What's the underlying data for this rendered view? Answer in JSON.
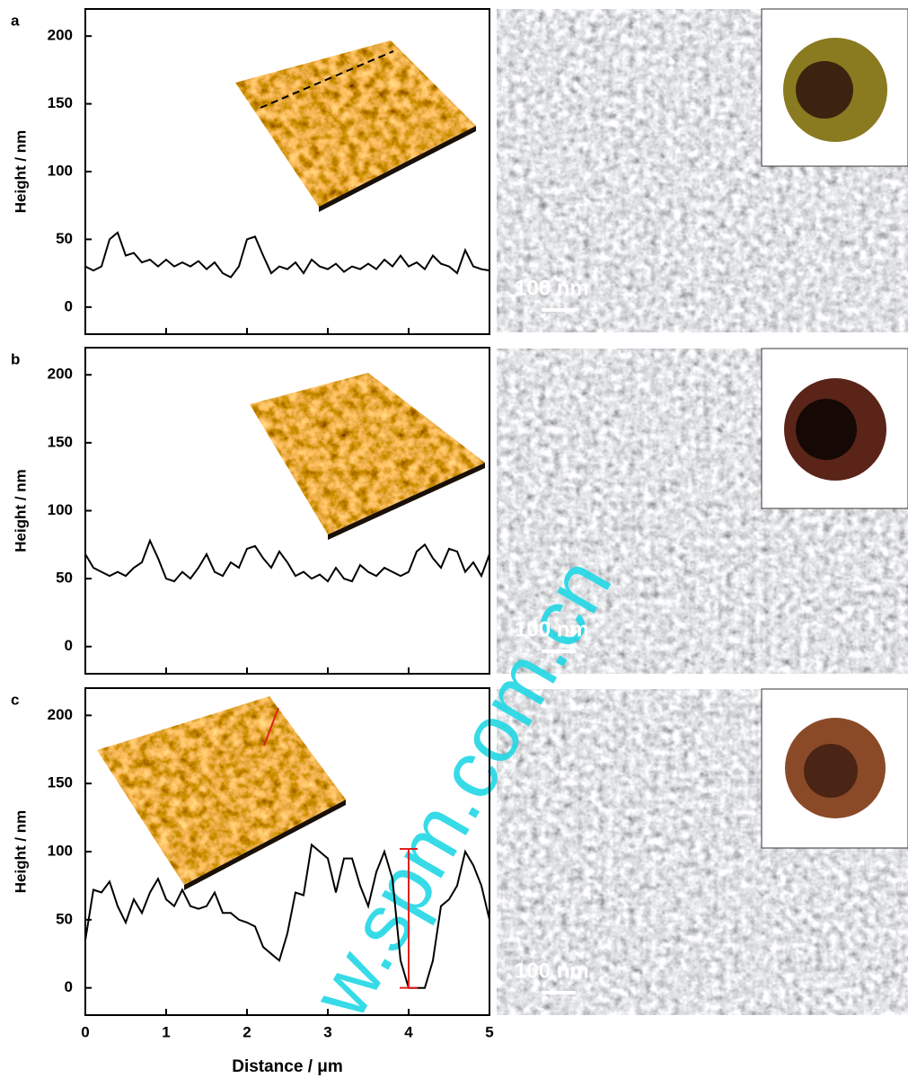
{
  "chart_data": [
    {
      "type": "line",
      "panel_label": "a",
      "ylabel": "Height / nm",
      "scale_label": "100 nm",
      "x": [
        0,
        0.1,
        0.2,
        0.3,
        0.4,
        0.5,
        0.6,
        0.7,
        0.8,
        0.9,
        1,
        1.1,
        1.2,
        1.3,
        1.4,
        1.5,
        1.6,
        1.7,
        1.8,
        1.9,
        2,
        2.1,
        2.2,
        2.3,
        2.4,
        2.5,
        2.6,
        2.7,
        2.8,
        2.9,
        3,
        3.1,
        3.2,
        3.3,
        3.4,
        3.5,
        3.6,
        3.7,
        3.8,
        3.9,
        4,
        4.1,
        4.2,
        4.3,
        4.4,
        4.5,
        4.6,
        4.7,
        4.8,
        4.9,
        5
      ],
      "values": [
        30,
        27,
        30,
        50,
        55,
        38,
        40,
        33,
        35,
        30,
        35,
        30,
        33,
        30,
        34,
        28,
        33,
        25,
        22,
        30,
        50,
        52,
        38,
        25,
        30,
        28,
        33,
        25,
        35,
        30,
        28,
        32,
        26,
        30,
        28,
        32,
        28,
        35,
        30,
        38,
        30,
        33,
        28,
        38,
        32,
        30,
        25,
        42,
        30,
        28,
        27
      ],
      "color": "#000000",
      "xlim": [
        0,
        5
      ],
      "ylim": [
        -20,
        220
      ],
      "xticks": [
        0,
        1,
        2,
        3,
        4,
        5
      ],
      "yticks": [
        0,
        50,
        100,
        150,
        200
      ],
      "xticklabels": false
    },
    {
      "type": "line",
      "panel_label": "b",
      "ylabel": "Height / nm",
      "scale_label": "100 nm",
      "x": [
        0,
        0.1,
        0.2,
        0.3,
        0.4,
        0.5,
        0.6,
        0.7,
        0.8,
        0.9,
        1,
        1.1,
        1.2,
        1.3,
        1.4,
        1.5,
        1.6,
        1.7,
        1.8,
        1.9,
        2,
        2.1,
        2.2,
        2.3,
        2.4,
        2.5,
        2.6,
        2.7,
        2.8,
        2.9,
        3,
        3.1,
        3.2,
        3.3,
        3.4,
        3.5,
        3.6,
        3.7,
        3.8,
        3.9,
        4,
        4.1,
        4.2,
        4.3,
        4.4,
        4.5,
        4.6,
        4.7,
        4.8,
        4.9,
        5
      ],
      "values": [
        68,
        58,
        55,
        52,
        55,
        52,
        58,
        62,
        78,
        65,
        50,
        48,
        55,
        50,
        58,
        68,
        55,
        52,
        62,
        58,
        72,
        74,
        65,
        58,
        70,
        62,
        52,
        55,
        50,
        53,
        48,
        58,
        50,
        48,
        60,
        55,
        52,
        58,
        55,
        52,
        55,
        70,
        75,
        65,
        58,
        72,
        70,
        55,
        62,
        52,
        68
      ],
      "color": "#000000",
      "xlim": [
        0,
        5
      ],
      "ylim": [
        -20,
        220
      ],
      "xticks": [
        0,
        1,
        2,
        3,
        4,
        5
      ],
      "yticks": [
        0,
        50,
        100,
        150,
        200
      ],
      "xticklabels": false
    },
    {
      "type": "line",
      "panel_label": "c",
      "ylabel": "Height / nm",
      "xlabel": "Distance / μm",
      "scale_label": "100 nm",
      "x": [
        0,
        0.1,
        0.2,
        0.3,
        0.4,
        0.5,
        0.6,
        0.7,
        0.8,
        0.9,
        1,
        1.1,
        1.2,
        1.3,
        1.4,
        1.5,
        1.6,
        1.7,
        1.8,
        1.9,
        2,
        2.1,
        2.2,
        2.3,
        2.4,
        2.5,
        2.6,
        2.7,
        2.8,
        2.9,
        3,
        3.1,
        3.2,
        3.3,
        3.4,
        3.5,
        3.6,
        3.7,
        3.8,
        3.9,
        4,
        4.1,
        4.2,
        4.3,
        4.4,
        4.5,
        4.6,
        4.7,
        4.8,
        4.9,
        5
      ],
      "values": [
        35,
        72,
        70,
        78,
        60,
        48,
        65,
        55,
        70,
        80,
        65,
        60,
        72,
        60,
        58,
        60,
        70,
        55,
        55,
        50,
        48,
        45,
        30,
        25,
        20,
        40,
        70,
        68,
        105,
        100,
        95,
        70,
        95,
        95,
        75,
        60,
        85,
        100,
        80,
        20,
        0,
        0,
        0,
        20,
        60,
        65,
        75,
        100,
        90,
        75,
        50
      ],
      "color": "#000000",
      "xlim": [
        0,
        5
      ],
      "ylim": [
        -20,
        220
      ],
      "xticks": [
        0,
        1,
        2,
        3,
        4,
        5
      ],
      "yticks": [
        0,
        50,
        100,
        150,
        200
      ],
      "xticklabels": true,
      "depth_bar_x": 4,
      "depth_bar": [
        0,
        102
      ],
      "depth_bar_color": "#e02020"
    }
  ],
  "watermark": "w.spm.com.cn"
}
